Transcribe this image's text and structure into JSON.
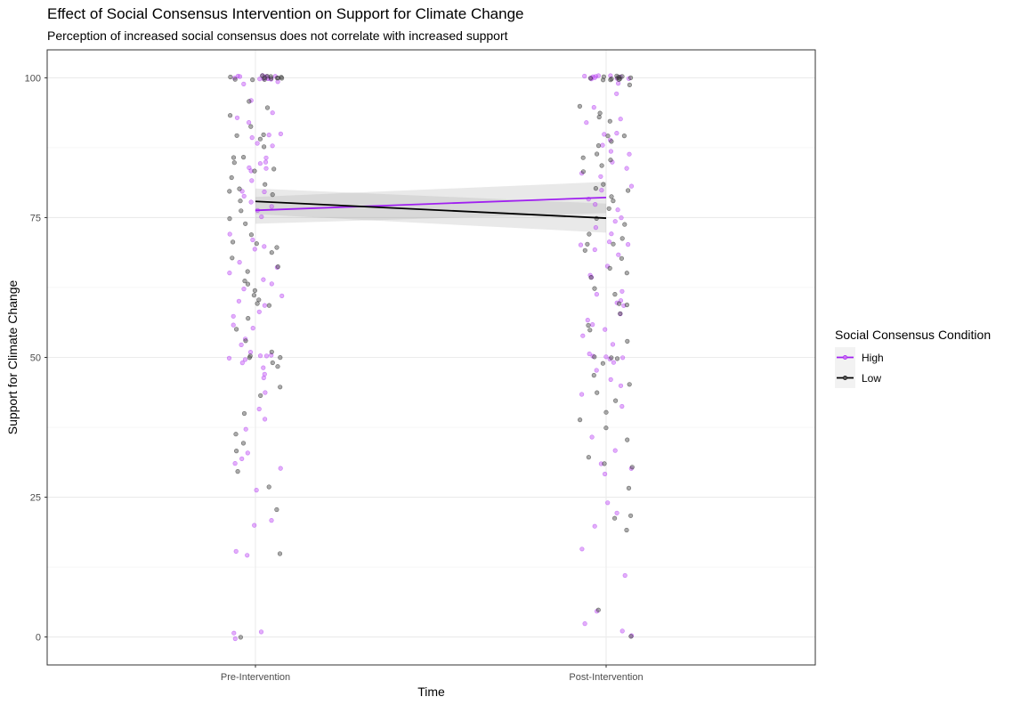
{
  "chart_data": {
    "type": "scatter",
    "title": "Effect of Social Consensus Intervention on Support for Climate Change",
    "subtitle": "Perception of increased social consensus does not correlate with increased support",
    "xlabel": "Time",
    "ylabel": "Support for Climate Change",
    "categories": [
      "Pre-Intervention",
      "Post-Intervention"
    ],
    "ylim": [
      -5,
      105
    ],
    "yticks": [
      0,
      25,
      50,
      75,
      100
    ],
    "grid": true,
    "legend_position": "right",
    "legend_title": "Social Consensus Condition",
    "series": [
      {
        "name": "High",
        "color": "#a020f0",
        "trend": [
          76.3,
          78.6
        ],
        "ci_lower": [
          73.9,
          75.8
        ],
        "ci_upper": [
          78.7,
          81.4
        ],
        "points": {
          "Pre-Intervention": [
            100,
            100,
            100,
            100,
            100,
            100,
            100,
            100,
            100,
            100,
            100,
            100,
            99,
            99,
            96,
            94,
            93,
            92,
            90,
            90,
            89,
            88,
            88,
            86,
            85,
            85,
            84,
            84,
            83,
            82,
            80,
            80,
            79,
            78,
            77,
            76,
            75,
            72,
            71,
            70,
            69,
            67,
            66,
            65,
            64,
            63,
            62,
            61,
            60,
            59,
            58,
            57,
            56,
            55,
            53,
            52,
            51,
            50,
            50,
            50,
            50,
            50,
            49,
            48,
            47,
            46,
            44,
            41,
            39,
            37,
            33,
            32,
            31,
            30,
            26,
            21,
            20,
            15,
            15,
            1,
            1,
            0
          ],
          "Post-Intervention": [
            100,
            100,
            100,
            100,
            100,
            100,
            100,
            100,
            100,
            100,
            100,
            99,
            97,
            95,
            93,
            92,
            90,
            90,
            89,
            88,
            87,
            86,
            85,
            84,
            83,
            82,
            81,
            80,
            78,
            77,
            76,
            75,
            74,
            73,
            72,
            71,
            70,
            70,
            69,
            68,
            66,
            65,
            64,
            62,
            61,
            60,
            60,
            59,
            58,
            57,
            56,
            55,
            54,
            52,
            51,
            50,
            50,
            50,
            50,
            49,
            48,
            46,
            45,
            43,
            41,
            36,
            33,
            31,
            30,
            29,
            24,
            22,
            20,
            16,
            11,
            5,
            2,
            1,
            0
          ]
        }
      },
      {
        "name": "Low",
        "color": "#000000",
        "trend": [
          77.9,
          74.9
        ],
        "ci_lower": [
          75.6,
          72.3
        ],
        "ci_upper": [
          80.2,
          77.5
        ],
        "points": {
          "Pre-Intervention": [
            100,
            100,
            100,
            100,
            100,
            100,
            100,
            100,
            100,
            100,
            100,
            100,
            100,
            96,
            95,
            93,
            91,
            90,
            90,
            89,
            88,
            86,
            86,
            85,
            84,
            83,
            82,
            81,
            80,
            80,
            79,
            78,
            76,
            75,
            74,
            72,
            71,
            70,
            70,
            69,
            68,
            66,
            65,
            64,
            63,
            62,
            61,
            60,
            60,
            59,
            57,
            55,
            53,
            51,
            50,
            50,
            50,
            49,
            48,
            45,
            43,
            40,
            36,
            35,
            33,
            30,
            27,
            23,
            15,
            0
          ],
          "Post-Intervention": [
            100,
            100,
            100,
            100,
            100,
            100,
            100,
            100,
            100,
            100,
            100,
            100,
            99,
            95,
            94,
            93,
            92,
            90,
            90,
            89,
            88,
            86,
            86,
            85,
            84,
            83,
            81,
            80,
            80,
            79,
            78,
            77,
            75,
            74,
            72,
            71,
            70,
            70,
            69,
            68,
            66,
            65,
            64,
            62,
            61,
            60,
            59,
            58,
            56,
            55,
            53,
            50,
            50,
            50,
            49,
            47,
            45,
            44,
            42,
            40,
            39,
            37,
            35,
            32,
            31,
            30,
            27,
            22,
            21,
            19,
            5,
            0
          ]
        }
      }
    ]
  }
}
